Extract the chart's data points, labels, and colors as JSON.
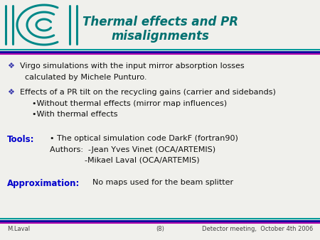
{
  "title_line1": "Thermal effects and PR",
  "title_line2": "misalignments",
  "title_color": "#007070",
  "background_color": "#f0f0ec",
  "bullet_color": "#3333aa",
  "tools_label_color": "#0000cc",
  "approx_label_color": "#0000cc",
  "body_text_color": "#111111",
  "sep_color1": "#aa00aa",
  "sep_color2": "#000099",
  "sep_color3": "#009999",
  "bullet1_line1": "Virgo simulations with the input mirror absorption losses",
  "bullet1_line2": "  calculated by Michele Punturo.",
  "bullet2_line1": "Effects of a PR tilt on the recycling gains (carrier and sidebands)",
  "sub1": "•Without thermal effects (mirror map influences)",
  "sub2": "•With thermal effects",
  "tools_text1": "• The optical simulation code DarkF (fortran90)",
  "tools_text2": "Authors:  -Jean Yves Vinet (OCA/ARTEMIS)",
  "tools_text3": "              -Mikael Laval (OCA/ARTEMIS)",
  "approx_text": "No maps used for the beam splitter",
  "footer_left": "M.Laval",
  "footer_center": "(8)",
  "footer_right": "Detector meeting,  October 4th 2006",
  "logo_color": "#008888"
}
